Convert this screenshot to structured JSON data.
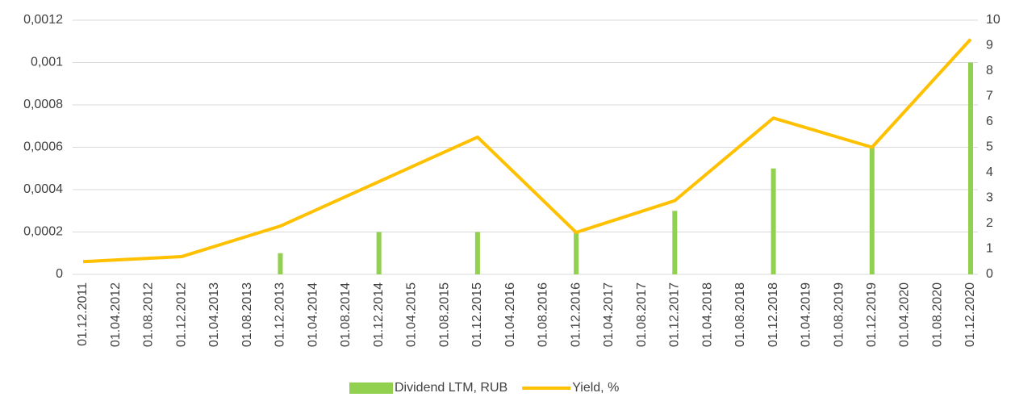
{
  "chart_data": {
    "type": "bar-line",
    "categories": [
      "01.12.2011",
      "01.04.2012",
      "01.08.2012",
      "01.12.2012",
      "01.04.2013",
      "01.08.2013",
      "01.12.2013",
      "01.04.2014",
      "01.08.2014",
      "01.12.2014",
      "01.04.2015",
      "01.08.2015",
      "01.12.2015",
      "01.04.2016",
      "01.08.2016",
      "01.12.2016",
      "01.04.2017",
      "01.08.2017",
      "01.12.2017",
      "01.04.2018",
      "01.08.2018",
      "01.12.2018",
      "01.04.2019",
      "01.08.2019",
      "01.12.2019",
      "01.04.2020",
      "01.08.2020",
      "01.12.2020"
    ],
    "series": [
      {
        "name": "Dividend LTM, RUB",
        "type": "bar",
        "axis": "y",
        "color": "#92d050",
        "x": [
          "01.12.2013",
          "01.12.2014",
          "01.12.2015",
          "01.12.2016",
          "01.12.2017",
          "01.12.2018",
          "01.12.2019",
          "01.12.2020"
        ],
        "values": [
          0.0001,
          0.0002,
          0.0002,
          0.0002,
          0.0003,
          0.0005,
          0.0006,
          0.001
        ]
      },
      {
        "name": "Yield, %",
        "type": "line",
        "axis": "y2",
        "color": "#ffc000",
        "x": [
          "01.12.2011",
          "01.12.2012",
          "01.12.2013",
          "01.12.2014",
          "01.12.2015",
          "01.12.2016",
          "01.12.2017",
          "01.12.2018",
          "01.12.2019",
          "01.12.2020"
        ],
        "values": [
          0.5,
          0.7,
          1.9,
          3.65,
          5.4,
          1.65,
          2.9,
          6.15,
          5.0,
          9.25
        ]
      }
    ],
    "ylim": [
      0,
      0.0012
    ],
    "yticks": [
      0,
      {
        "value": 0.0002,
        "label": "0,0002"
      },
      {
        "value": 0.0004,
        "label": "0,0004"
      },
      {
        "value": 0.0006,
        "label": "0,0006"
      },
      {
        "value": 0.0008,
        "label": "0,0008"
      },
      {
        "value": 0.001,
        "label": "0,001"
      },
      {
        "value": 0.0012,
        "label": "0,0012"
      }
    ],
    "y2lim": [
      0,
      10
    ],
    "y2ticks": [
      0,
      1,
      2,
      3,
      4,
      5,
      6,
      7,
      8,
      9,
      10
    ],
    "grid": true,
    "legend": "bottom"
  }
}
